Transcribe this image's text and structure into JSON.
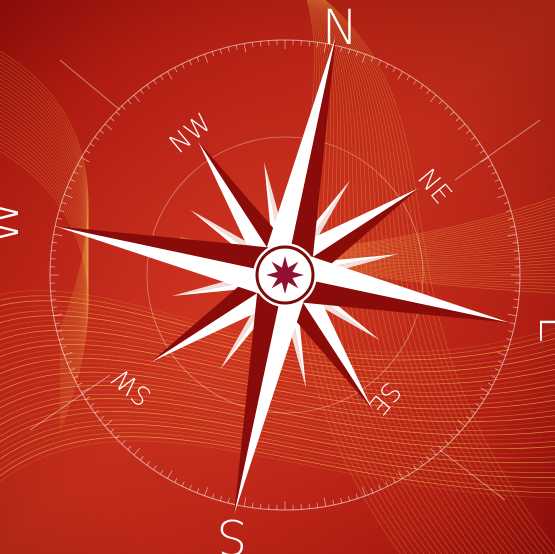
{
  "colors": {
    "background_dark": "#7a0806",
    "background_light": "#c4261c",
    "line_gold": "#f2b24e",
    "star_white": "#ffffff",
    "center_star": "#8e1230",
    "center_ring": "#7a0c0c"
  },
  "compass": {
    "cardinals": {
      "n": "N",
      "e": "E",
      "s": "S",
      "w": "W"
    },
    "intercardinals": {
      "ne": "NE",
      "se": "SE",
      "sw": "SW",
      "nw": "NW"
    }
  }
}
